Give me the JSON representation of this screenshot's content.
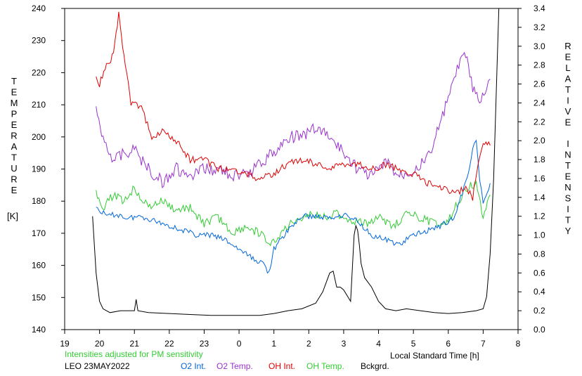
{
  "chart_data": {
    "type": "line",
    "left_axis_label": "TEMPERATURE",
    "left_axis_unit": "[K]",
    "right_axis_label": "RELATIVE INTENSITY",
    "xlabel": "Local Standard Time [h]",
    "note": "Intensities adjusted for PM sensitivity",
    "station": "LEO 23MAY2022",
    "x_ticks": [
      "19",
      "20",
      "21",
      "22",
      "23",
      "0",
      "1",
      "2",
      "3",
      "4",
      "5",
      "6",
      "7",
      "8"
    ],
    "y_left_ticks": [
      "140",
      "150",
      "160",
      "170",
      "180",
      "190",
      "200",
      "210",
      "220",
      "230",
      "240"
    ],
    "y_right_ticks": [
      "0.0",
      "0.2",
      "0.4",
      "0.6",
      "0.8",
      "1.0",
      "1.2",
      "1.4",
      "1.6",
      "1.8",
      "2.0",
      "2.2",
      "2.4",
      "2.6",
      "2.8",
      "3.0",
      "3.2",
      "3.4"
    ],
    "xlim": [
      19,
      32
    ],
    "ylim_left": [
      140,
      240
    ],
    "ylim_right": [
      0,
      3.4
    ],
    "grid": false,
    "series": [
      {
        "name": "O2 Int.",
        "axis": "right",
        "color": "#0066dd",
        "x": [
          19.9,
          20.2,
          20.5,
          20.8,
          21.2,
          21.6,
          22.0,
          22.4,
          22.8,
          23.2,
          23.6,
          24.0,
          24.4,
          24.7,
          24.85,
          25.0,
          25.4,
          25.8,
          26.2,
          26.6,
          27.0,
          27.4,
          27.8,
          28.2,
          28.6,
          29.0,
          29.4,
          29.8,
          30.2,
          30.4,
          30.5,
          30.7,
          30.8,
          30.9,
          31.0,
          31.2
        ],
        "y": [
          1.3,
          1.2,
          1.22,
          1.18,
          1.2,
          1.15,
          1.1,
          1.05,
          1.0,
          1.0,
          0.95,
          0.85,
          0.75,
          0.7,
          0.6,
          0.85,
          1.05,
          1.2,
          1.2,
          1.18,
          1.22,
          1.15,
          1.0,
          0.95,
          0.9,
          1.0,
          1.05,
          1.1,
          1.2,
          1.45,
          1.55,
          1.9,
          2.0,
          1.6,
          1.35,
          1.55
        ]
      },
      {
        "name": "O2 Temp.",
        "axis": "left",
        "color": "#9933cc",
        "x": [
          19.9,
          20.1,
          20.4,
          20.7,
          21.0,
          21.4,
          21.8,
          22.2,
          22.6,
          23.0,
          23.4,
          23.8,
          24.2,
          24.6,
          25.0,
          25.4,
          25.8,
          26.2,
          26.6,
          27.0,
          27.4,
          27.8,
          28.2,
          28.6,
          29.0,
          29.4,
          29.8,
          30.0,
          30.3,
          30.5,
          30.7,
          30.9,
          31.1,
          31.2
        ],
        "y": [
          208,
          200,
          193,
          195,
          196,
          190,
          186,
          190,
          187,
          190,
          190,
          188,
          188,
          192,
          195,
          200,
          200,
          203,
          200,
          195,
          190,
          188,
          192,
          188,
          190,
          193,
          205,
          212,
          222,
          226,
          215,
          210,
          215,
          218
        ]
      },
      {
        "name": "OH Int.",
        "axis": "right",
        "color": "#dd0000",
        "x": [
          19.9,
          20.0,
          20.2,
          20.4,
          20.55,
          20.7,
          20.9,
          21.2,
          21.5,
          21.8,
          22.2,
          22.6,
          23.0,
          23.4,
          23.8,
          24.2,
          24.6,
          25.0,
          25.4,
          25.8,
          26.2,
          26.6,
          27.0,
          27.4,
          27.8,
          28.2,
          28.6,
          29.0,
          29.4,
          29.8,
          30.2,
          30.5,
          30.7,
          30.9,
          31.0,
          31.2
        ],
        "y": [
          2.7,
          2.6,
          2.8,
          2.9,
          3.35,
          2.9,
          2.4,
          2.35,
          2.05,
          2.1,
          2.0,
          1.8,
          1.8,
          1.7,
          1.7,
          1.65,
          1.6,
          1.65,
          1.75,
          1.8,
          1.75,
          1.7,
          1.75,
          1.75,
          1.7,
          1.75,
          1.7,
          1.65,
          1.55,
          1.5,
          1.45,
          1.5,
          1.4,
          1.85,
          2.0,
          1.95
        ]
      },
      {
        "name": "OH Temp.",
        "axis": "left",
        "color": "#33cc33",
        "x": [
          19.9,
          20.1,
          20.4,
          20.7,
          21.0,
          21.4,
          21.8,
          22.2,
          22.6,
          23.0,
          23.4,
          23.8,
          24.2,
          24.6,
          24.9,
          25.2,
          25.6,
          26.0,
          26.4,
          26.8,
          27.2,
          27.6,
          28.0,
          28.4,
          28.8,
          29.2,
          29.6,
          30.0,
          30.3,
          30.6,
          30.8,
          31.0,
          31.2
        ],
        "y": [
          183,
          178,
          182,
          180,
          184,
          178,
          180,
          177,
          178,
          173,
          175,
          170,
          172,
          170,
          166,
          170,
          174,
          176,
          175,
          176,
          174,
          173,
          175,
          172,
          176,
          175,
          173,
          174,
          180,
          185,
          185,
          175,
          182
        ]
      },
      {
        "name": "Bckgrd.",
        "axis": "right",
        "color": "#000000",
        "x": [
          19.8,
          19.9,
          20.0,
          20.1,
          20.3,
          20.6,
          21.0,
          21.05,
          21.1,
          21.4,
          22.0,
          22.6,
          23.2,
          23.8,
          24.2,
          24.6,
          25.0,
          25.4,
          25.8,
          26.2,
          26.4,
          26.6,
          26.7,
          26.8,
          26.9,
          27.0,
          27.2,
          27.3,
          27.35,
          27.4,
          27.45,
          27.5,
          27.6,
          27.8,
          28.0,
          28.2,
          28.5,
          28.8,
          29.2,
          29.6,
          30.0,
          30.4,
          30.8,
          31.0,
          31.1,
          31.2,
          31.3,
          31.4,
          31.45
        ],
        "y": [
          1.2,
          0.6,
          0.3,
          0.22,
          0.18,
          0.2,
          0.2,
          0.32,
          0.2,
          0.18,
          0.17,
          0.16,
          0.15,
          0.15,
          0.15,
          0.15,
          0.17,
          0.2,
          0.22,
          0.28,
          0.4,
          0.6,
          0.62,
          0.45,
          0.45,
          0.42,
          0.3,
          1.0,
          1.1,
          1.05,
          0.9,
          0.7,
          0.55,
          0.45,
          0.3,
          0.22,
          0.2,
          0.22,
          0.2,
          0.18,
          0.17,
          0.18,
          0.2,
          0.22,
          0.35,
          0.8,
          1.6,
          2.8,
          3.5
        ]
      }
    ]
  },
  "legend": {
    "note": "Intensities adjusted for PM sensitivity",
    "station": "LEO 23MAY2022",
    "o2_int": "O2 Int.",
    "o2_temp": "O2 Temp.",
    "oh_int": "OH Int.",
    "oh_temp": "OH Temp.",
    "bckgrd": "Bckgrd.",
    "xlabel": "Local Standard Time [h]"
  }
}
